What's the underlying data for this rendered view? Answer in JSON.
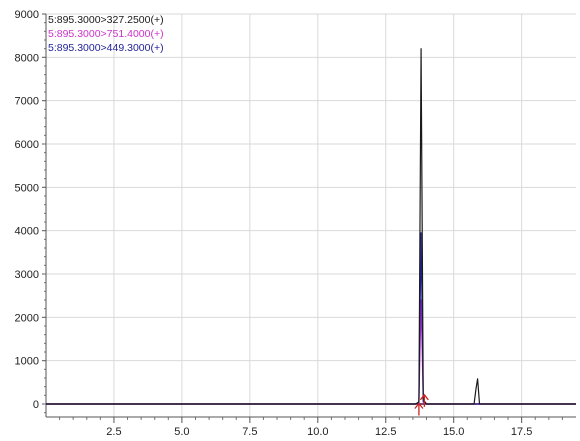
{
  "chart_data": {
    "type": "line",
    "title": "",
    "xlabel": "",
    "ylabel": "",
    "xlim": [
      0,
      19.5
    ],
    "ylim": [
      -300,
      9000
    ],
    "x_ticks": [
      2.5,
      5.0,
      7.5,
      10.0,
      12.5,
      15.0,
      17.5
    ],
    "x_tick_labels": [
      "2.5",
      "5.0",
      "7.5",
      "10.0",
      "12.5",
      "15.0",
      "17.5"
    ],
    "y_ticks": [
      0,
      1000,
      2000,
      3000,
      4000,
      5000,
      6000,
      7000,
      8000,
      9000
    ],
    "y_tick_labels": [
      "0",
      "1000",
      "2000",
      "3000",
      "4000",
      "5000",
      "6000",
      "7000",
      "8000",
      "9000"
    ],
    "grid": true,
    "legend_position": "top-left",
    "series": [
      {
        "name": "5:895.3000>327.2500(+)",
        "color": "#1a1a1a",
        "x": [
          0,
          13.6,
          13.72,
          13.8,
          13.88,
          14.0,
          15.75,
          15.82,
          15.88,
          15.95,
          19.5
        ],
        "y": [
          0,
          0,
          50,
          8200,
          100,
          0,
          0,
          350,
          580,
          0,
          0
        ]
      },
      {
        "name": "5:895.3000>751.4000(+)",
        "color": "#cc33cc",
        "x": [
          0,
          13.6,
          13.72,
          13.8,
          13.88,
          14.0,
          19.5
        ],
        "y": [
          0,
          0,
          20,
          2400,
          40,
          0,
          0
        ]
      },
      {
        "name": "5:895.3000>449.3000(+)",
        "color": "#1f1f99",
        "x": [
          0,
          13.6,
          13.72,
          13.8,
          13.88,
          14.0,
          19.5
        ],
        "y": [
          0,
          0,
          30,
          3950,
          60,
          0,
          0
        ]
      }
    ],
    "baseline_color": "#5a0a3c",
    "peak_markers": [
      {
        "x": 13.72,
        "y": -150,
        "color": "#cc2222"
      },
      {
        "x": 13.92,
        "y": 50,
        "color": "#cc2222"
      }
    ]
  }
}
